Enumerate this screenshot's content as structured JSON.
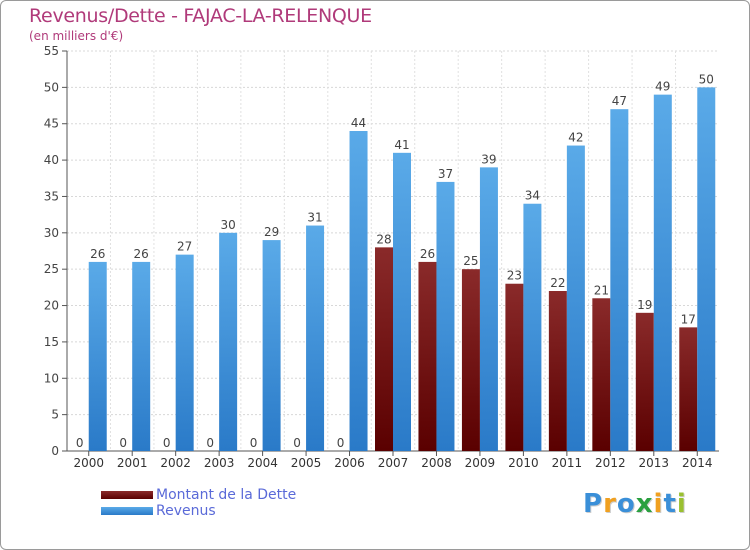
{
  "chart": {
    "title": "Revenus/Dette - FAJAC-LA-RELENQUE",
    "subtitle": "(en milliers d'€)"
  },
  "legend": {
    "debt_label": "Montant de la Dette",
    "revenue_label": "Revenus"
  },
  "logo": {
    "letters": [
      "P",
      "r",
      "o",
      "x",
      "i",
      "t",
      "i"
    ],
    "colors": [
      "#3a8fd8",
      "#f0a020",
      "#3a8fd8",
      "#2aa040",
      "#f0a020",
      "#3a8fd8",
      "#9ac030"
    ]
  },
  "colors": {
    "debt": "#8a2a2a",
    "debt_dark": "#5a0000",
    "revenue": "#5aaae8",
    "revenue_dark": "#2a7ac8"
  },
  "chart_data": {
    "type": "bar",
    "title": "Revenus/Dette - FAJAC-LA-RELENQUE",
    "subtitle": "(en milliers d'€)",
    "categories": [
      "2000",
      "2001",
      "2002",
      "2003",
      "2004",
      "2005",
      "2006",
      "2007",
      "2008",
      "2009",
      "2010",
      "2011",
      "2012",
      "2013",
      "2014"
    ],
    "series": [
      {
        "name": "Montant de la Dette",
        "values": [
          0,
          0,
          0,
          0,
          0,
          0,
          0,
          28,
          26,
          25,
          23,
          22,
          21,
          19,
          17
        ]
      },
      {
        "name": "Revenus",
        "values": [
          26,
          26,
          27,
          30,
          29,
          31,
          44,
          41,
          37,
          39,
          34,
          42,
          47,
          49,
          50
        ]
      }
    ],
    "yticks": [
      0,
      5,
      10,
      15,
      20,
      25,
      30,
      35,
      40,
      45,
      50,
      55
    ],
    "ylim": [
      0,
      55
    ],
    "grid": true,
    "legend_position": "bottom-left"
  }
}
